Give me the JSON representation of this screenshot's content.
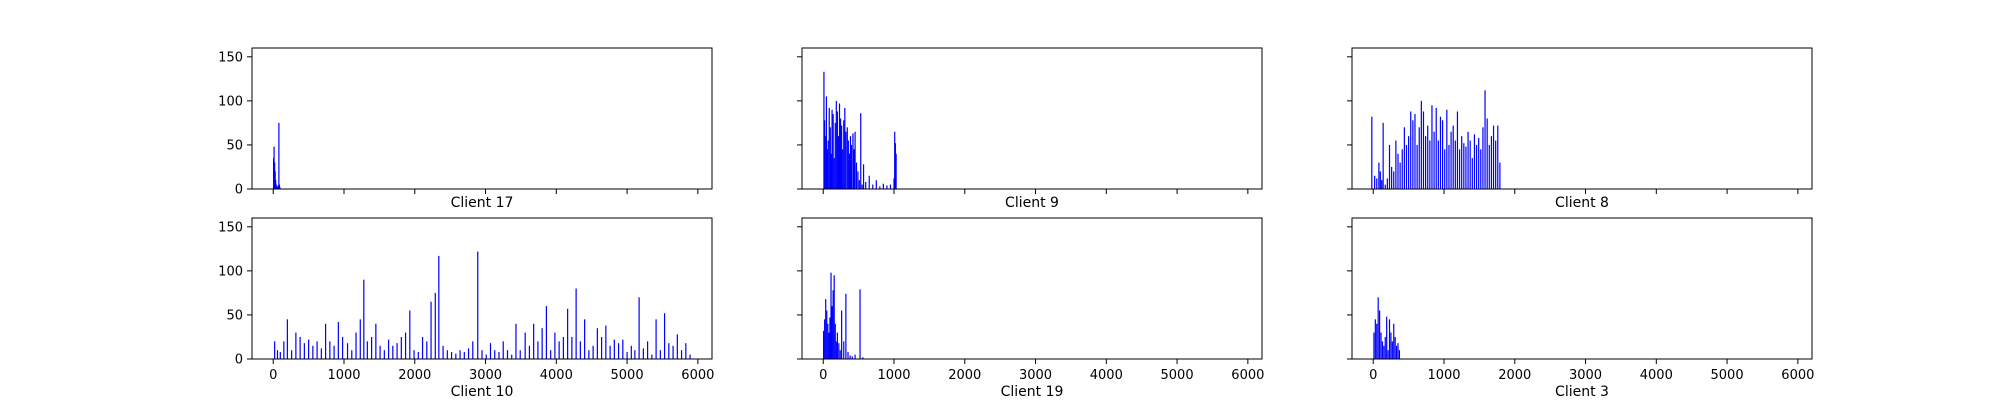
{
  "chart_data": [
    {
      "type": "bar",
      "title": "Client 17",
      "xlim": [
        -300,
        6200
      ],
      "ylim": [
        0,
        160
      ],
      "yticks": [
        0,
        50,
        100,
        150
      ],
      "xticks": [
        0,
        1000,
        2000,
        3000,
        4000,
        5000,
        6000
      ],
      "show_x_tick_labels": false,
      "show_y_tick_labels": true,
      "color": "#0000ff",
      "points": [
        [
          5,
          35
        ],
        [
          12,
          48
        ],
        [
          20,
          30
        ],
        [
          28,
          20
        ],
        [
          35,
          10
        ],
        [
          42,
          5
        ],
        [
          50,
          3
        ],
        [
          60,
          2
        ],
        [
          70,
          4
        ],
        [
          80,
          75
        ],
        [
          88,
          5
        ],
        [
          95,
          2
        ]
      ]
    },
    {
      "type": "bar",
      "title": "Client 9",
      "xlim": [
        -300,
        6200
      ],
      "ylim": [
        0,
        160
      ],
      "yticks": [
        0,
        50,
        100,
        150
      ],
      "xticks": [
        0,
        1000,
        2000,
        3000,
        4000,
        5000,
        6000
      ],
      "show_x_tick_labels": false,
      "show_y_tick_labels": false,
      "color": "#0000ff",
      "points": [
        [
          10,
          133
        ],
        [
          20,
          78
        ],
        [
          30,
          60
        ],
        [
          45,
          105
        ],
        [
          60,
          45
        ],
        [
          70,
          55
        ],
        [
          85,
          92
        ],
        [
          100,
          70
        ],
        [
          110,
          40
        ],
        [
          125,
          90
        ],
        [
          140,
          85
        ],
        [
          155,
          35
        ],
        [
          170,
          75
        ],
        [
          185,
          100
        ],
        [
          200,
          88
        ],
        [
          215,
          60
        ],
        [
          230,
          97
        ],
        [
          245,
          80
        ],
        [
          260,
          72
        ],
        [
          275,
          45
        ],
        [
          290,
          78
        ],
        [
          305,
          92
        ],
        [
          320,
          65
        ],
        [
          340,
          70
        ],
        [
          355,
          55
        ],
        [
          370,
          40
        ],
        [
          385,
          60
        ],
        [
          400,
          50
        ],
        [
          420,
          63
        ],
        [
          435,
          45
        ],
        [
          450,
          65
        ],
        [
          470,
          30
        ],
        [
          490,
          20
        ],
        [
          510,
          10
        ],
        [
          530,
          86
        ],
        [
          550,
          5
        ],
        [
          570,
          28
        ],
        [
          600,
          8
        ],
        [
          650,
          15
        ],
        [
          700,
          5
        ],
        [
          750,
          10
        ],
        [
          800,
          3
        ],
        [
          850,
          6
        ],
        [
          900,
          4
        ],
        [
          950,
          5
        ],
        [
          1000,
          12
        ],
        [
          1010,
          65
        ],
        [
          1020,
          52
        ],
        [
          1030,
          40
        ]
      ]
    },
    {
      "type": "bar",
      "title": "Client 8",
      "xlim": [
        -300,
        6200
      ],
      "ylim": [
        0,
        160
      ],
      "yticks": [
        0,
        50,
        100,
        150
      ],
      "xticks": [
        0,
        1000,
        2000,
        3000,
        4000,
        5000,
        6000
      ],
      "show_x_tick_labels": false,
      "show_y_tick_labels": false,
      "color": "#0000ff",
      "points": [
        [
          -20,
          82
        ],
        [
          20,
          15
        ],
        [
          50,
          12
        ],
        [
          80,
          30
        ],
        [
          100,
          20
        ],
        [
          120,
          10
        ],
        [
          140,
          75
        ],
        [
          170,
          5
        ],
        [
          200,
          12
        ],
        [
          230,
          50
        ],
        [
          260,
          25
        ],
        [
          290,
          20
        ],
        [
          320,
          55
        ],
        [
          350,
          40
        ],
        [
          380,
          30
        ],
        [
          410,
          45
        ],
        [
          440,
          70
        ],
        [
          470,
          50
        ],
        [
          500,
          60
        ],
        [
          530,
          88
        ],
        [
          560,
          78
        ],
        [
          590,
          85
        ],
        [
          620,
          50
        ],
        [
          650,
          70
        ],
        [
          680,
          100
        ],
        [
          710,
          88
        ],
        [
          740,
          60
        ],
        [
          770,
          72
        ],
        [
          800,
          55
        ],
        [
          830,
          95
        ],
        [
          860,
          65
        ],
        [
          890,
          92
        ],
        [
          920,
          55
        ],
        [
          950,
          82
        ],
        [
          980,
          78
        ],
        [
          1010,
          45
        ],
        [
          1040,
          90
        ],
        [
          1070,
          50
        ],
        [
          1100,
          65
        ],
        [
          1130,
          72
        ],
        [
          1160,
          55
        ],
        [
          1190,
          88
        ],
        [
          1220,
          45
        ],
        [
          1250,
          60
        ],
        [
          1280,
          52
        ],
        [
          1310,
          48
        ],
        [
          1340,
          65
        ],
        [
          1370,
          55
        ],
        [
          1400,
          35
        ],
        [
          1430,
          62
        ],
        [
          1460,
          50
        ],
        [
          1490,
          58
        ],
        [
          1520,
          45
        ],
        [
          1550,
          70
        ],
        [
          1580,
          112
        ],
        [
          1610,
          80
        ],
        [
          1640,
          50
        ],
        [
          1670,
          60
        ],
        [
          1700,
          72
        ],
        [
          1730,
          55
        ],
        [
          1760,
          72
        ],
        [
          1790,
          30
        ]
      ]
    },
    {
      "type": "bar",
      "title": "Client 10",
      "xlim": [
        -300,
        6200
      ],
      "ylim": [
        0,
        160
      ],
      "yticks": [
        0,
        50,
        100,
        150
      ],
      "xticks": [
        0,
        1000,
        2000,
        3000,
        4000,
        5000,
        6000
      ],
      "xticklabels": [
        "0",
        "1000",
        "2000",
        "3000",
        "4000",
        "5000",
        "6000"
      ],
      "show_x_tick_labels": true,
      "show_y_tick_labels": true,
      "color": "#0000ff",
      "points": [
        [
          20,
          20
        ],
        [
          60,
          10
        ],
        [
          100,
          8
        ],
        [
          150,
          20
        ],
        [
          200,
          45
        ],
        [
          260,
          10
        ],
        [
          320,
          30
        ],
        [
          380,
          25
        ],
        [
          440,
          18
        ],
        [
          500,
          22
        ],
        [
          560,
          15
        ],
        [
          620,
          20
        ],
        [
          680,
          12
        ],
        [
          740,
          40
        ],
        [
          800,
          20
        ],
        [
          860,
          15
        ],
        [
          920,
          42
        ],
        [
          980,
          25
        ],
        [
          1050,
          18
        ],
        [
          1110,
          10
        ],
        [
          1170,
          30
        ],
        [
          1230,
          45
        ],
        [
          1280,
          90
        ],
        [
          1330,
          20
        ],
        [
          1390,
          25
        ],
        [
          1450,
          40
        ],
        [
          1510,
          15
        ],
        [
          1570,
          10
        ],
        [
          1630,
          22
        ],
        [
          1690,
          15
        ],
        [
          1750,
          18
        ],
        [
          1810,
          25
        ],
        [
          1870,
          30
        ],
        [
          1930,
          55
        ],
        [
          1990,
          10
        ],
        [
          2050,
          8
        ],
        [
          2110,
          25
        ],
        [
          2170,
          20
        ],
        [
          2230,
          65
        ],
        [
          2290,
          75
        ],
        [
          2340,
          117
        ],
        [
          2400,
          15
        ],
        [
          2460,
          10
        ],
        [
          2520,
          8
        ],
        [
          2580,
          6
        ],
        [
          2640,
          10
        ],
        [
          2700,
          8
        ],
        [
          2760,
          12
        ],
        [
          2820,
          20
        ],
        [
          2890,
          122
        ],
        [
          2950,
          10
        ],
        [
          3010,
          5
        ],
        [
          3070,
          18
        ],
        [
          3130,
          10
        ],
        [
          3190,
          8
        ],
        [
          3250,
          20
        ],
        [
          3310,
          10
        ],
        [
          3370,
          5
        ],
        [
          3430,
          40
        ],
        [
          3490,
          10
        ],
        [
          3560,
          30
        ],
        [
          3620,
          15
        ],
        [
          3680,
          40
        ],
        [
          3740,
          20
        ],
        [
          3800,
          35
        ],
        [
          3860,
          60
        ],
        [
          3920,
          10
        ],
        [
          3980,
          30
        ],
        [
          4040,
          20
        ],
        [
          4100,
          25
        ],
        [
          4160,
          57
        ],
        [
          4220,
          25
        ],
        [
          4280,
          80
        ],
        [
          4340,
          20
        ],
        [
          4400,
          45
        ],
        [
          4460,
          10
        ],
        [
          4520,
          15
        ],
        [
          4580,
          35
        ],
        [
          4640,
          25
        ],
        [
          4700,
          38
        ],
        [
          4760,
          15
        ],
        [
          4820,
          22
        ],
        [
          4880,
          18
        ],
        [
          4940,
          22
        ],
        [
          5000,
          8
        ],
        [
          5060,
          15
        ],
        [
          5110,
          10
        ],
        [
          5170,
          70
        ],
        [
          5230,
          12
        ],
        [
          5290,
          20
        ],
        [
          5350,
          5
        ],
        [
          5410,
          45
        ],
        [
          5470,
          10
        ],
        [
          5530,
          52
        ],
        [
          5590,
          18
        ],
        [
          5650,
          15
        ],
        [
          5710,
          28
        ],
        [
          5770,
          10
        ],
        [
          5830,
          18
        ],
        [
          5890,
          5
        ]
      ]
    },
    {
      "type": "bar",
      "title": "Client 19",
      "xlim": [
        -300,
        6200
      ],
      "ylim": [
        0,
        160
      ],
      "yticks": [
        0,
        50,
        100,
        150
      ],
      "xticks": [
        0,
        1000,
        2000,
        3000,
        4000,
        5000,
        6000
      ],
      "xticklabels": [
        "0",
        "1000",
        "2000",
        "3000",
        "4000",
        "5000",
        "6000"
      ],
      "show_x_tick_labels": true,
      "show_y_tick_labels": false,
      "color": "#0000ff",
      "points": [
        [
          5,
          32
        ],
        [
          20,
          45
        ],
        [
          35,
          68
        ],
        [
          50,
          55
        ],
        [
          65,
          40
        ],
        [
          80,
          30
        ],
        [
          95,
          47
        ],
        [
          110,
          98
        ],
        [
          125,
          60
        ],
        [
          140,
          78
        ],
        [
          155,
          95
        ],
        [
          170,
          40
        ],
        [
          185,
          20
        ],
        [
          200,
          30
        ],
        [
          220,
          18
        ],
        [
          240,
          10
        ],
        [
          260,
          55
        ],
        [
          290,
          20
        ],
        [
          320,
          74
        ],
        [
          350,
          8
        ],
        [
          380,
          4
        ],
        [
          410,
          3
        ],
        [
          450,
          5
        ],
        [
          520,
          79
        ],
        [
          560,
          2
        ]
      ]
    },
    {
      "type": "bar",
      "title": "Client 3",
      "xlim": [
        -300,
        6200
      ],
      "ylim": [
        0,
        160
      ],
      "yticks": [
        0,
        50,
        100,
        150
      ],
      "xticks": [
        0,
        1000,
        2000,
        3000,
        4000,
        5000,
        6000
      ],
      "xticklabels": [
        "0",
        "1000",
        "2000",
        "3000",
        "4000",
        "5000",
        "6000"
      ],
      "show_x_tick_labels": true,
      "show_y_tick_labels": false,
      "color": "#0000ff",
      "points": [
        [
          10,
          30
        ],
        [
          30,
          45
        ],
        [
          50,
          40
        ],
        [
          70,
          70
        ],
        [
          90,
          55
        ],
        [
          110,
          30
        ],
        [
          130,
          20
        ],
        [
          150,
          15
        ],
        [
          170,
          25
        ],
        [
          190,
          48
        ],
        [
          210,
          10
        ],
        [
          230,
          45
        ],
        [
          250,
          30
        ],
        [
          270,
          20
        ],
        [
          290,
          40
        ],
        [
          310,
          25
        ],
        [
          330,
          15
        ],
        [
          350,
          18
        ],
        [
          370,
          10
        ]
      ]
    }
  ]
}
